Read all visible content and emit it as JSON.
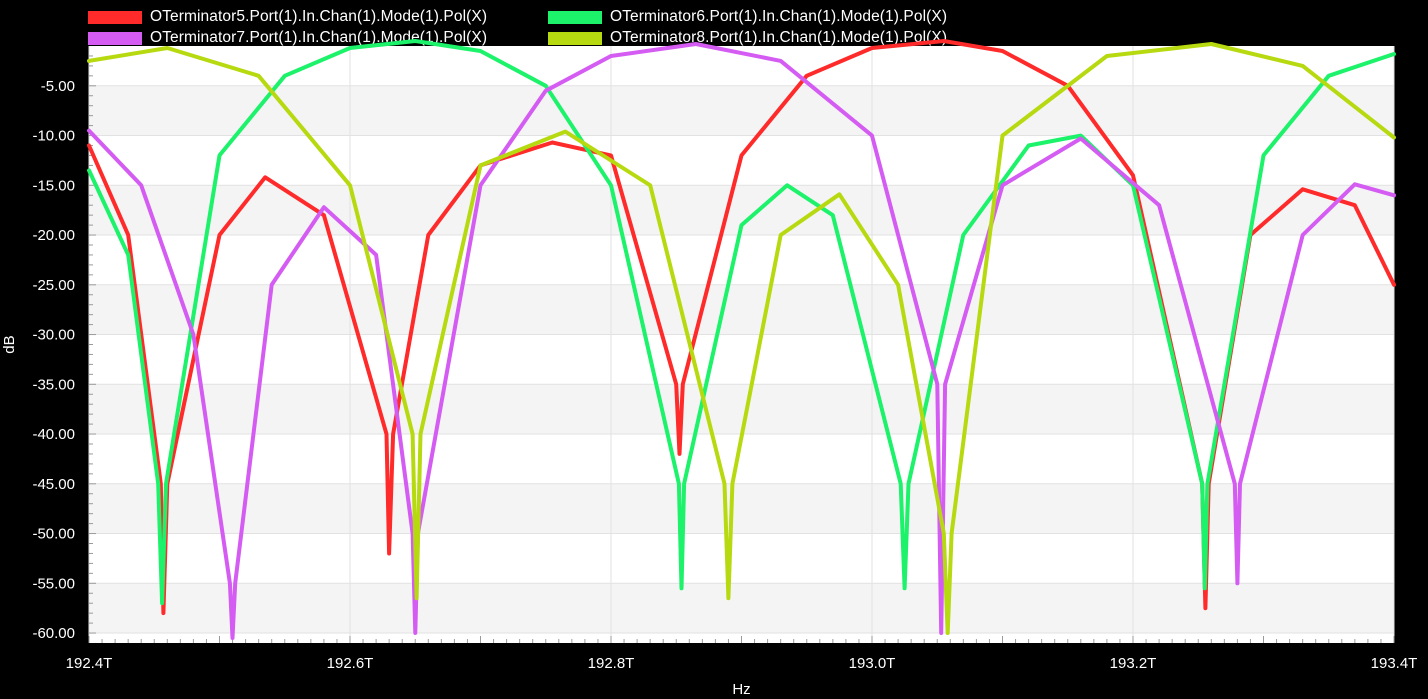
{
  "chart_data": {
    "type": "line",
    "xlabel": "Hz",
    "ylabel": "dB",
    "x_unit": "THz",
    "xlim": [
      192.4,
      193.4
    ],
    "ylim": [
      -61,
      -1
    ],
    "x_ticks": [
      192.4,
      192.6,
      192.8,
      193.0,
      193.2,
      193.4
    ],
    "x_tick_labels": [
      "192.4T",
      "192.6T",
      "192.8T",
      "193.0T",
      "193.2T",
      "193.4T"
    ],
    "y_ticks": [
      -5,
      -10,
      -15,
      -20,
      -25,
      -30,
      -35,
      -40,
      -45,
      -50,
      -55,
      -60
    ],
    "y_tick_labels": [
      "-5.00",
      "-10.00",
      "-15.00",
      "-20.00",
      "-25.00",
      "-30.00",
      "-35.00",
      "-40.00",
      "-45.00",
      "-50.00",
      "-55.00",
      "-60.00"
    ],
    "grid": true,
    "legend_position": "top",
    "series": [
      {
        "name": "OTerminator5.Port(1).In.Chan(1).Mode(1).Pol(X)",
        "color": "#ff2a2a",
        "x": [
          192.4,
          192.43,
          192.455,
          192.457,
          192.46,
          192.5,
          192.535,
          192.58,
          192.628,
          192.63,
          192.633,
          192.66,
          192.7,
          192.755,
          192.8,
          192.85,
          192.8525,
          192.855,
          192.9,
          192.95,
          193.0,
          193.055,
          193.1,
          193.15,
          193.2,
          193.253,
          193.2555,
          193.258,
          193.29,
          193.33,
          193.37,
          193.4
        ],
        "y": [
          -11,
          -20,
          -45,
          -58,
          -45,
          -20,
          -14.2,
          -18,
          -40,
          -52,
          -40,
          -20,
          -13,
          -10.7,
          -12,
          -35,
          -42,
          -35,
          -12,
          -4,
          -1.2,
          -0.5,
          -1.5,
          -5,
          -14,
          -45,
          -57.5,
          -45,
          -20,
          -15.4,
          -17,
          -25
        ]
      },
      {
        "name": "OTerminator6.Port(1).In.Chan(1).Mode(1).Pol(X)",
        "color": "#1cf26a",
        "x": [
          192.4,
          192.43,
          192.453,
          192.456,
          192.459,
          192.5,
          192.55,
          192.6,
          192.65,
          192.7,
          192.75,
          192.8,
          192.852,
          192.854,
          192.856,
          192.9,
          192.935,
          192.97,
          193.022,
          193.025,
          193.028,
          193.07,
          193.12,
          193.16,
          193.2,
          193.253,
          193.255,
          193.257,
          193.3,
          193.35,
          193.4
        ],
        "y": [
          -13.5,
          -22,
          -45,
          -57,
          -45,
          -12,
          -4,
          -1.2,
          -0.5,
          -1.5,
          -5,
          -15,
          -45,
          -55.5,
          -45,
          -19,
          -15,
          -18,
          -45,
          -55.5,
          -45,
          -20,
          -11,
          -10,
          -15,
          -45,
          -55.5,
          -45,
          -12,
          -4,
          -1.8
        ]
      },
      {
        "name": "OTerminator7.Port(1).In.Chan(1).Mode(1).Pol(X)",
        "color": "#d45cf2",
        "x": [
          192.4,
          192.44,
          192.48,
          192.508,
          192.51,
          192.512,
          192.54,
          192.58,
          192.62,
          192.648,
          192.65,
          192.652,
          192.7,
          192.75,
          192.8,
          192.865,
          192.93,
          193.0,
          193.05,
          193.053,
          193.056,
          193.1,
          193.16,
          193.22,
          193.278,
          193.28,
          193.282,
          193.33,
          193.37,
          193.4
        ],
        "y": [
          -9.5,
          -15,
          -30,
          -55,
          -60.5,
          -55,
          -25,
          -17.2,
          -22,
          -50,
          -60,
          -50,
          -15,
          -5.5,
          -2,
          -0.8,
          -2.5,
          -10,
          -35,
          -60,
          -35,
          -15,
          -10.3,
          -17,
          -45,
          -55,
          -45,
          -20,
          -14.9,
          -16
        ]
      },
      {
        "name": "OTerminator8.Port(1).In.Chan(1).Mode(1).Pol(X)",
        "color": "#b6d90f",
        "x": [
          192.4,
          192.46,
          192.53,
          192.6,
          192.648,
          192.651,
          192.654,
          192.7,
          192.765,
          192.83,
          192.887,
          192.89,
          192.893,
          192.93,
          192.975,
          193.02,
          193.055,
          193.058,
          193.061,
          193.1,
          193.18,
          193.26,
          193.33,
          193.4
        ],
        "y": [
          -2.5,
          -1.2,
          -4,
          -15,
          -40,
          -56.5,
          -40,
          -13,
          -9.6,
          -15,
          -45,
          -56.5,
          -45,
          -20,
          -15.9,
          -25,
          -50,
          -60,
          -50,
          -10,
          -2,
          -0.8,
          -3,
          -10.2
        ]
      }
    ]
  }
}
